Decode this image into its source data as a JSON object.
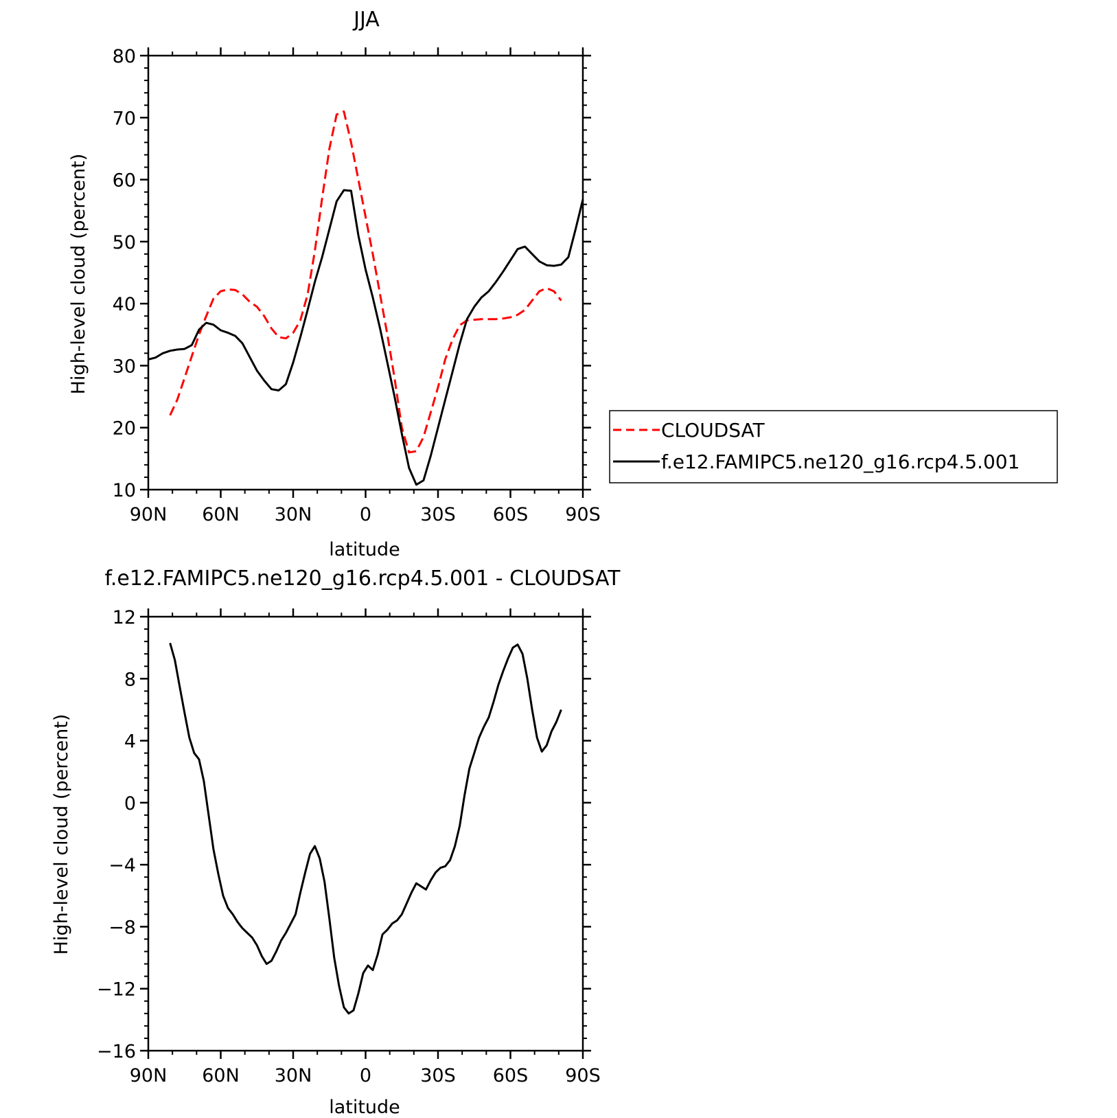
{
  "chart_data": [
    {
      "type": "line",
      "title": "JJA",
      "xlabel": "latitude",
      "ylabel": "High-level cloud (percent)",
      "xlim": [
        -90,
        90
      ],
      "ylim": [
        10,
        80
      ],
      "x_ticks": [
        -90,
        -60,
        -30,
        0,
        30,
        60,
        90
      ],
      "x_tick_labels": [
        "90N",
        "60N",
        "30N",
        "0",
        "30S",
        "60S",
        "90S"
      ],
      "y_ticks": [
        10,
        20,
        30,
        40,
        50,
        60,
        70,
        80
      ],
      "y_tick_labels": [
        "10",
        "20",
        "30",
        "40",
        "50",
        "60",
        "70",
        "80"
      ],
      "legend_placement": "right",
      "series": [
        {
          "name": "CLOUDSAT",
          "color": "#ff0000",
          "style": "dashed",
          "x": [
            -81,
            -78,
            -75,
            -72,
            -69,
            -66,
            -63,
            -60,
            -57,
            -54,
            -51,
            -48,
            -45,
            -42,
            -39,
            -36,
            -33,
            -30,
            -27,
            -24,
            -21,
            -18,
            -15,
            -12,
            -9,
            -6,
            -3,
            0,
            3,
            6,
            9,
            12,
            15,
            18,
            21,
            24,
            27,
            30,
            33,
            36,
            39,
            42,
            45,
            48,
            51,
            54,
            57,
            60,
            63,
            66,
            69,
            72,
            75,
            78,
            81
          ],
          "y": [
            22.0,
            24.5,
            28.0,
            31.5,
            35.0,
            38.0,
            40.8,
            42.0,
            42.3,
            42.2,
            41.5,
            40.3,
            39.5,
            38.0,
            36.0,
            34.6,
            34.4,
            35.3,
            37.3,
            41.5,
            48.5,
            57.0,
            65.0,
            70.5,
            71.0,
            66.0,
            60.0,
            54.0,
            48.0,
            41.5,
            35.0,
            28.0,
            20.0,
            16.0,
            16.2,
            18.5,
            22.5,
            26.5,
            31.0,
            34.2,
            36.5,
            37.3,
            37.4,
            37.5,
            37.5,
            37.5,
            37.6,
            37.8,
            38.2,
            39.0,
            40.5,
            42.0,
            42.5,
            42.0,
            40.5
          ]
        },
        {
          "name": "f.e12.FAMIPC5.ne120_g16.rcp4.5.001",
          "color": "#000000",
          "style": "solid",
          "x": [
            -90,
            -87,
            -84,
            -81,
            -78,
            -75,
            -72,
            -69,
            -66,
            -63,
            -60,
            -57,
            -54,
            -51,
            -48,
            -45,
            -42,
            -39,
            -36,
            -33,
            -30,
            -27,
            -24,
            -21,
            -18,
            -15,
            -12,
            -9,
            -6,
            -3,
            0,
            3,
            6,
            9,
            12,
            15,
            18,
            21,
            24,
            27,
            30,
            33,
            36,
            39,
            42,
            45,
            48,
            51,
            54,
            57,
            60,
            63,
            66,
            69,
            72,
            75,
            78,
            81,
            84,
            87,
            90
          ],
          "y": [
            31.0,
            31.3,
            32.0,
            32.4,
            32.6,
            32.7,
            33.3,
            35.8,
            36.9,
            36.6,
            35.7,
            35.3,
            34.8,
            33.6,
            31.4,
            29.2,
            27.6,
            26.2,
            26.0,
            27.0,
            30.5,
            34.6,
            39.0,
            43.5,
            47.5,
            52.0,
            56.5,
            58.3,
            58.2,
            51.0,
            45.5,
            41.0,
            36.0,
            30.5,
            25.0,
            19.0,
            13.5,
            10.8,
            11.5,
            15.5,
            20.0,
            24.5,
            29.0,
            33.5,
            37.5,
            39.5,
            41.0,
            42.0,
            43.5,
            45.2,
            47.0,
            48.8,
            49.2,
            48.0,
            46.8,
            46.2,
            46.1,
            46.3,
            47.5,
            52.0,
            56.8
          ]
        }
      ]
    },
    {
      "type": "line",
      "title": "f.e12.FAMIPC5.ne120_g16.rcp4.5.001 - CLOUDSAT",
      "xlabel": "latitude",
      "ylabel": "High-level cloud (percent)",
      "xlim": [
        -90,
        90
      ],
      "ylim": [
        -16,
        12
      ],
      "x_ticks": [
        -90,
        -60,
        -30,
        0,
        30,
        60,
        90
      ],
      "x_tick_labels": [
        "90N",
        "60N",
        "30N",
        "0",
        "30S",
        "60S",
        "90S"
      ],
      "y_ticks": [
        -16,
        -12,
        -8,
        -4,
        0,
        4,
        8,
        12
      ],
      "y_tick_labels": [
        "−16",
        "−12",
        "−8",
        "−4",
        "0",
        "4",
        "8",
        "12"
      ],
      "series": [
        {
          "color": "#000000",
          "style": "solid",
          "x": [
            -81,
            -79,
            -77,
            -75,
            -73,
            -71,
            -69,
            -67,
            -65,
            -63,
            -61,
            -59,
            -57,
            -55,
            -53,
            -51,
            -49,
            -47,
            -45,
            -43,
            -41,
            -39,
            -37,
            -35,
            -33,
            -31,
            -29,
            -27,
            -25,
            -23,
            -21,
            -19,
            -17,
            -15,
            -13,
            -11,
            -9,
            -7,
            -5,
            -3,
            -1,
            1,
            3,
            5,
            7,
            9,
            11,
            13,
            15,
            17,
            19,
            21,
            23,
            25,
            27,
            29,
            31,
            33,
            35,
            37,
            39,
            41,
            43,
            45,
            47,
            49,
            51,
            53,
            55,
            57,
            59,
            61,
            63,
            65,
            67,
            69,
            71,
            73,
            75,
            77,
            79,
            81
          ],
          "y": [
            10.3,
            9.2,
            7.5,
            5.8,
            4.2,
            3.2,
            2.8,
            1.4,
            -0.8,
            -3.0,
            -4.6,
            -6.0,
            -6.8,
            -7.2,
            -7.7,
            -8.1,
            -8.4,
            -8.7,
            -9.2,
            -9.9,
            -10.4,
            -10.2,
            -9.6,
            -8.9,
            -8.4,
            -7.8,
            -7.2,
            -5.8,
            -4.5,
            -3.3,
            -2.8,
            -3.6,
            -5.1,
            -7.5,
            -10.0,
            -11.8,
            -13.2,
            -13.6,
            -13.4,
            -12.3,
            -11.0,
            -10.5,
            -10.8,
            -9.8,
            -8.5,
            -8.2,
            -7.8,
            -7.6,
            -7.2,
            -6.5,
            -5.8,
            -5.2,
            -5.4,
            -5.6,
            -5.0,
            -4.5,
            -4.2,
            -4.1,
            -3.7,
            -2.8,
            -1.5,
            0.5,
            2.2,
            3.2,
            4.2,
            4.9,
            5.5,
            6.5,
            7.6,
            8.5,
            9.3,
            10.0,
            10.2,
            9.6,
            8.0,
            6.0,
            4.2,
            3.3,
            3.7,
            4.6,
            5.2,
            6.0
          ]
        }
      ]
    }
  ]
}
